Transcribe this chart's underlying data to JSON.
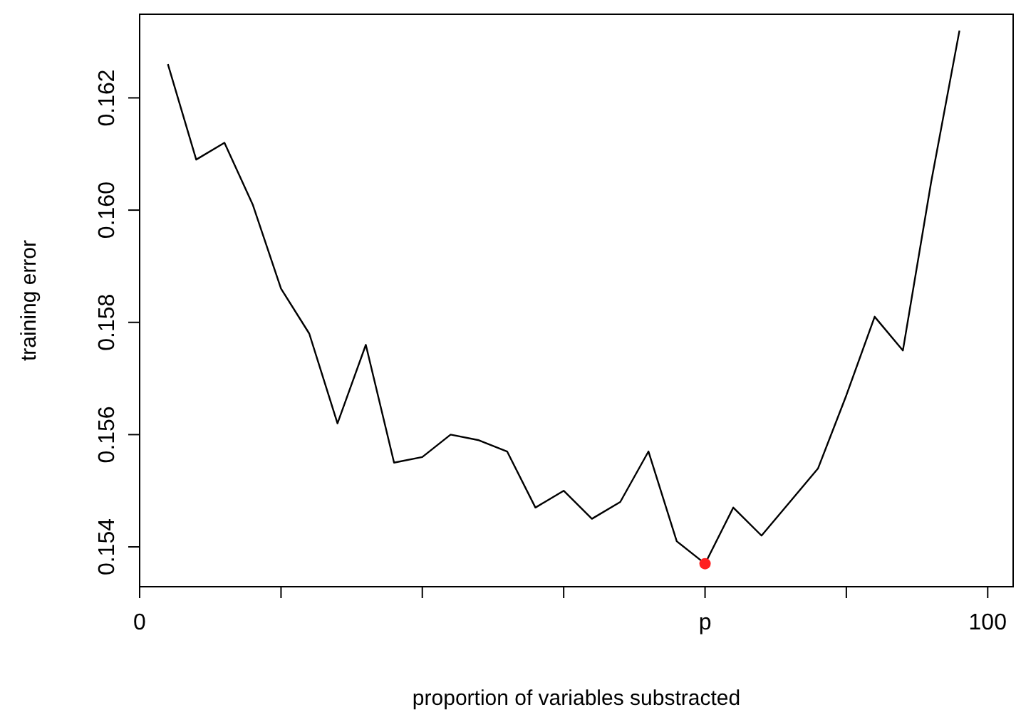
{
  "chart_data": {
    "type": "line",
    "xlabel": "proportion of variables substracted",
    "ylabel": "training error",
    "xlim": [
      0,
      103
    ],
    "ylim": [
      0.15329,
      0.16349
    ],
    "xticks": [
      {
        "value": 0,
        "label": "0"
      },
      {
        "value": 16.67,
        "label": null
      },
      {
        "value": 33.33,
        "label": null
      },
      {
        "value": 50,
        "label": null
      },
      {
        "value": 66.67,
        "label": "p"
      },
      {
        "value": 83.33,
        "label": null
      },
      {
        "value": 100,
        "label": "100"
      }
    ],
    "yticks": [
      {
        "value": 0.154,
        "label": "0.154"
      },
      {
        "value": 0.156,
        "label": "0.156"
      },
      {
        "value": 0.158,
        "label": "0.158"
      },
      {
        "value": 0.16,
        "label": "0.160"
      },
      {
        "value": 0.162,
        "label": "0.162"
      }
    ],
    "grid": false,
    "series": [
      {
        "color": "#000000",
        "marker": "none",
        "line_style": "solid",
        "x": [
          3.33,
          6.67,
          10,
          13.33,
          16.67,
          20,
          23.33,
          26.67,
          30,
          33.33,
          36.67,
          40,
          43.33,
          46.67,
          50,
          53.33,
          56.67,
          60,
          63.33,
          66.67,
          70,
          73.33,
          76.67,
          80,
          83.33,
          86.67,
          90,
          93.33,
          96.67
        ],
        "values": [
          0.1626,
          0.1609,
          0.1612,
          0.1601,
          0.1586,
          0.1578,
          0.1562,
          0.1576,
          0.1555,
          0.1556,
          0.156,
          0.1559,
          0.1557,
          0.1547,
          0.155,
          0.1545,
          0.1548,
          0.1557,
          0.1541,
          0.1537,
          0.1547,
          0.1542,
          0.1548,
          0.1554,
          0.1567,
          0.1581,
          0.1575,
          0.1605,
          0.1632
        ]
      },
      {
        "type": "scatter",
        "color": "#ff2020",
        "marker": "circle",
        "x": [
          66.67
        ],
        "values": [
          0.1537
        ]
      }
    ]
  }
}
